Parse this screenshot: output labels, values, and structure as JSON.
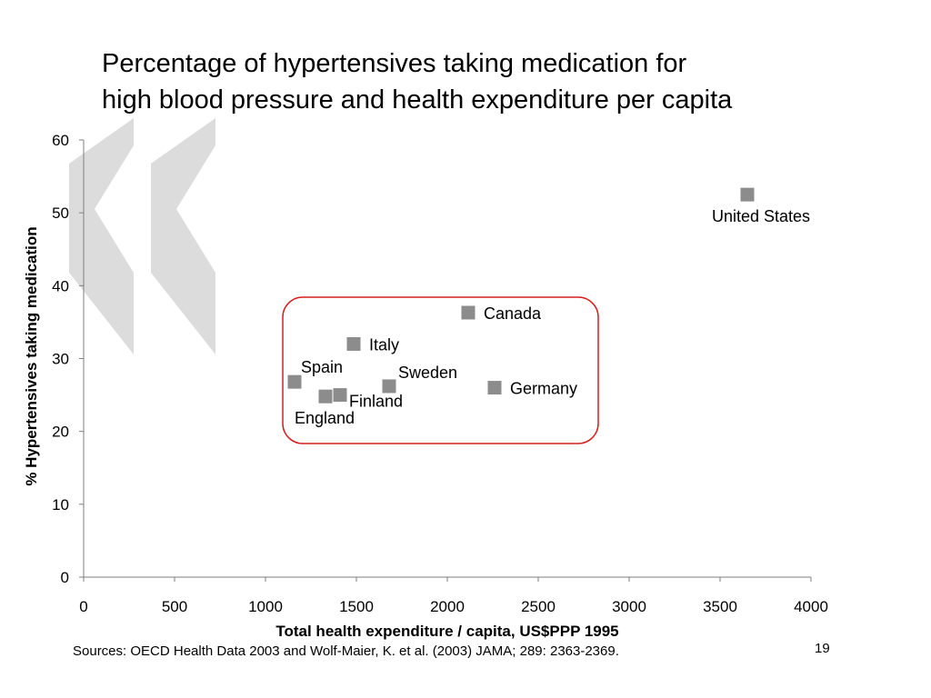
{
  "slide": {
    "title_line1": "Percentage of hypertensives taking medication for",
    "title_line2": "high blood pressure and health expenditure per capita",
    "source": "Sources: OECD Health Data 2003 and Wolf-Maier, K. et  al. (2003) JAMA; 289: 2363-2369.",
    "page_number": "19"
  },
  "colors": {
    "marker": "#8c8c8c",
    "highlight_box": "#d42020",
    "axis": "#7f7f7f",
    "decoration": "#dcdcdc"
  },
  "chart_data": {
    "type": "scatter",
    "xlabel": "Total health expenditure / capita, US$PPP 1995",
    "ylabel": "% Hypertensives taking medication",
    "xlim": [
      0,
      4000
    ],
    "ylim": [
      0,
      60
    ],
    "x_ticks": [
      0,
      500,
      1000,
      1500,
      2000,
      2500,
      3000,
      3500,
      4000
    ],
    "y_ticks": [
      0,
      10,
      20,
      30,
      40,
      50,
      60
    ],
    "grid": false,
    "points": [
      {
        "label": "United States",
        "x": 3650,
        "y": 52.5
      },
      {
        "label": "Canada",
        "x": 2115,
        "y": 36.3
      },
      {
        "label": "Italy",
        "x": 1485,
        "y": 32.0
      },
      {
        "label": "Spain",
        "x": 1160,
        "y": 26.8
      },
      {
        "label": "Sweden",
        "x": 1680,
        "y": 26.2
      },
      {
        "label": "Germany",
        "x": 2260,
        "y": 26.0
      },
      {
        "label": "Finland",
        "x": 1410,
        "y": 25.0
      },
      {
        "label": "England",
        "x": 1330,
        "y": 24.8
      }
    ],
    "annotation": "highlight box around countries with expenditure between 1000 and 2500"
  }
}
